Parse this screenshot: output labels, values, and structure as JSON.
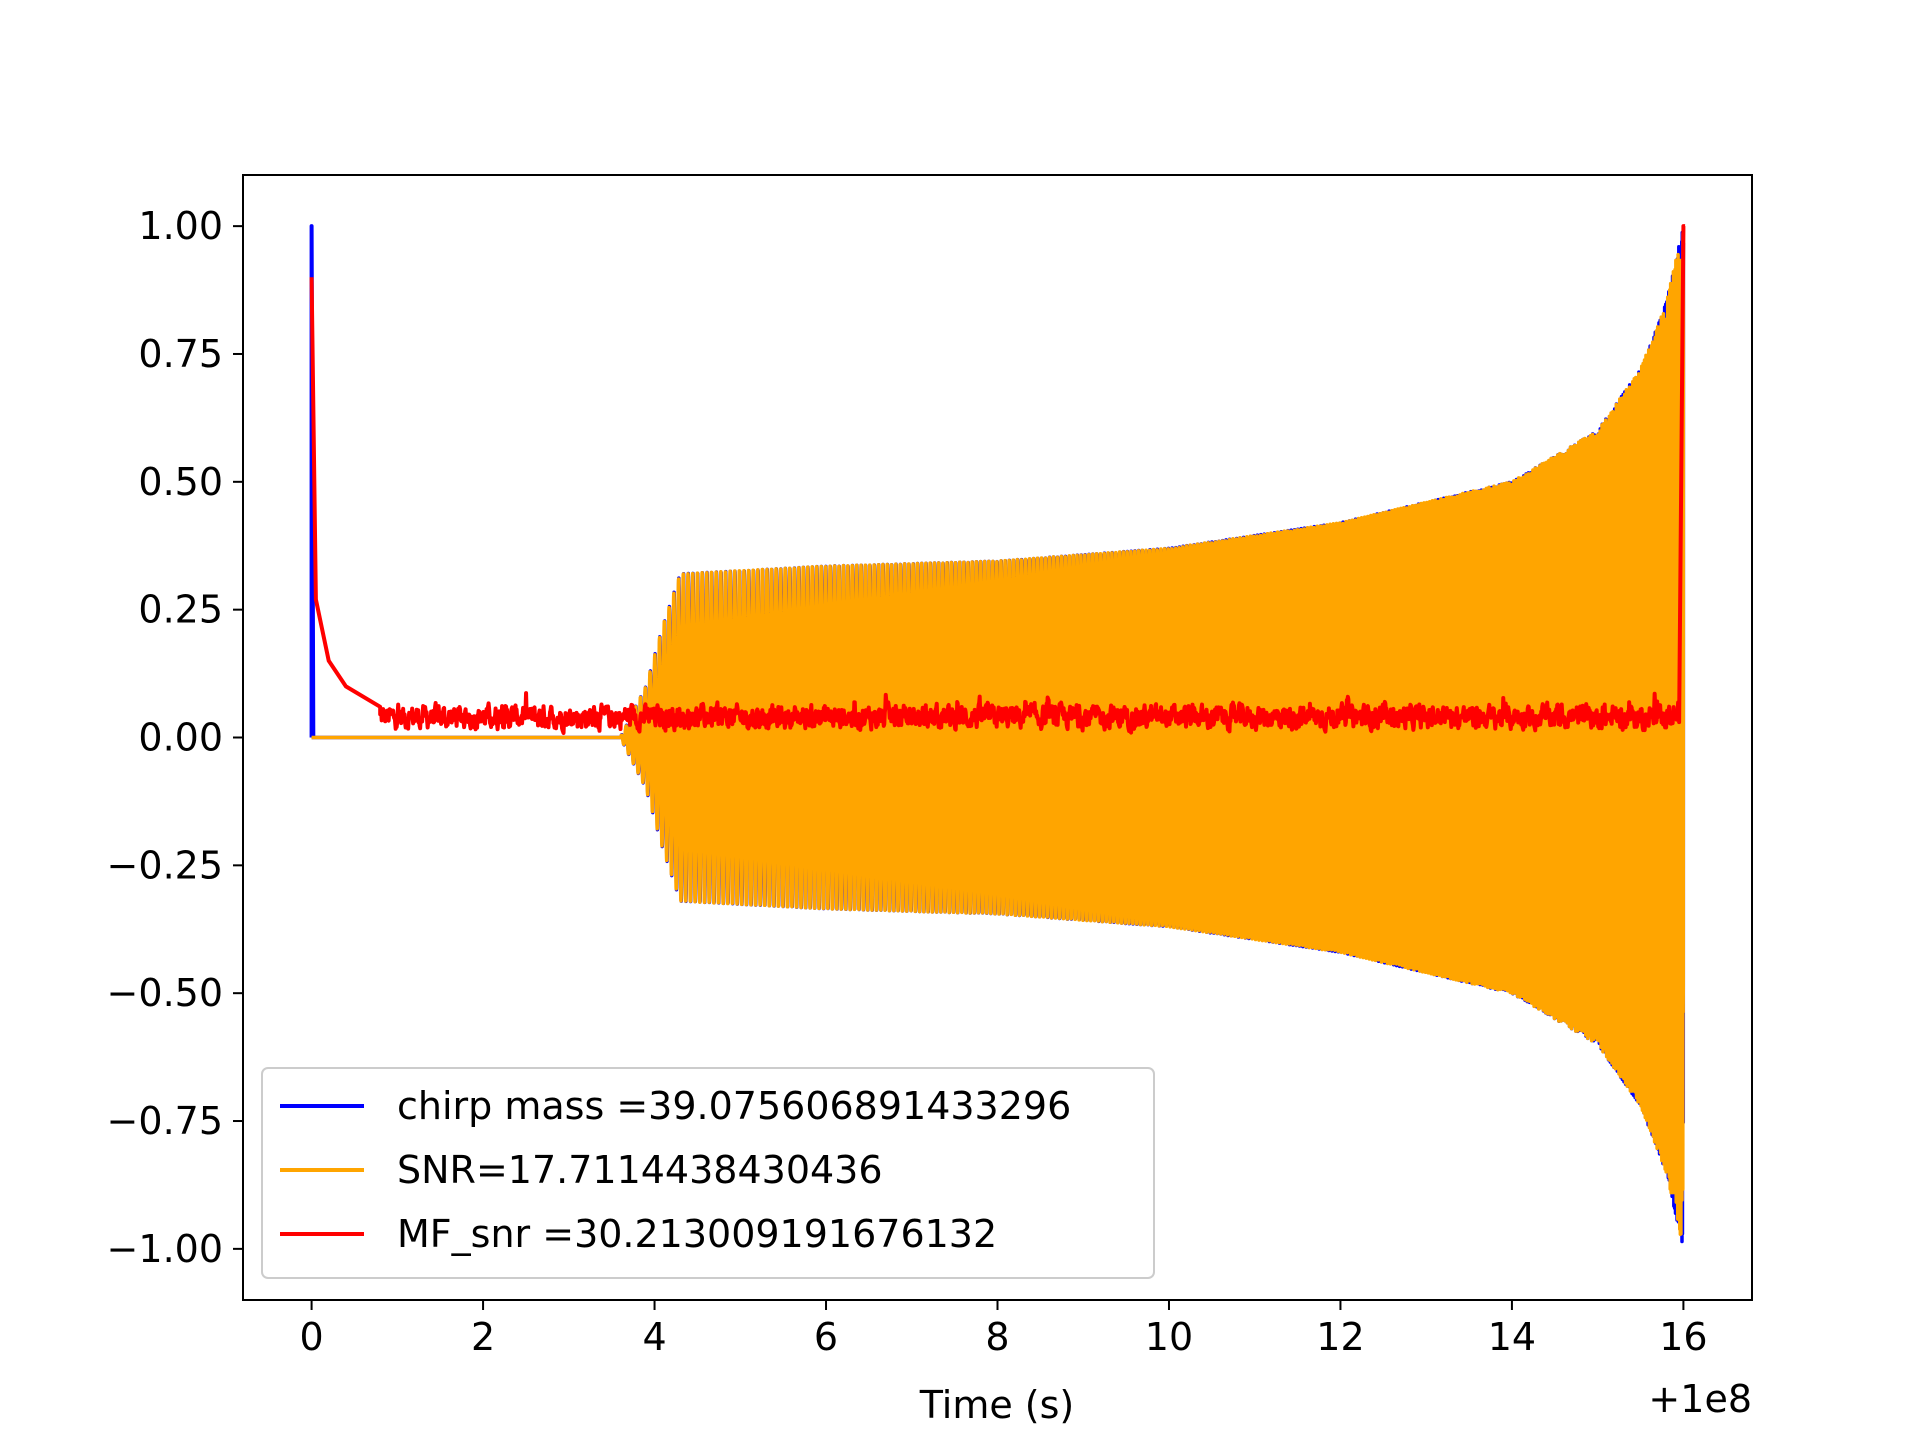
{
  "chart_data": {
    "type": "line",
    "title": "",
    "xlabel": "Time (s)",
    "ylabel": "",
    "x_offset_label": "+1e8",
    "xlim": [
      -0.8,
      16.8
    ],
    "ylim": [
      -1.1,
      1.1
    ],
    "x_ticks": [
      0,
      2,
      4,
      6,
      8,
      10,
      12,
      14,
      16
    ],
    "x_tick_labels": [
      "0",
      "2",
      "4",
      "6",
      "8",
      "10",
      "12",
      "14",
      "16"
    ],
    "y_ticks": [
      1.0,
      0.75,
      0.5,
      0.25,
      0.0,
      -0.25,
      -0.5,
      -0.75,
      -1.0
    ],
    "y_tick_labels": [
      "1.00",
      "0.75",
      "0.50",
      "0.25",
      "0.00",
      "−0.25",
      "−0.50",
      "−0.75",
      "−1.00"
    ],
    "grid": false,
    "legend_position": "lower-left",
    "series": [
      {
        "name": "chirp mass =39.075606891433296",
        "color": "#0000ff",
        "kind": "chirp",
        "start_x": 3.6,
        "end_x": 16.0,
        "envelope": [
          [
            0.0,
            1.0
          ],
          [
            3.6,
            0.0
          ],
          [
            3.9,
            0.1
          ],
          [
            4.1,
            0.22
          ],
          [
            4.3,
            0.32
          ],
          [
            6.0,
            0.335
          ],
          [
            8.0,
            0.345
          ],
          [
            10.0,
            0.37
          ],
          [
            12.0,
            0.42
          ],
          [
            14.0,
            0.5
          ],
          [
            15.0,
            0.6
          ],
          [
            15.5,
            0.72
          ],
          [
            15.8,
            0.85
          ],
          [
            16.0,
            1.0
          ]
        ],
        "spike": [
          [
            0.0,
            0.0
          ],
          [
            0.0,
            1.0
          ],
          [
            0.02,
            0.0
          ]
        ]
      },
      {
        "name": "SNR=17.7114438430436",
        "color": "#ffa500",
        "kind": "chirp",
        "start_x": 3.6,
        "end_x": 16.0,
        "envelope": [
          [
            0.0,
            0.0
          ],
          [
            3.6,
            0.0
          ],
          [
            3.9,
            0.1
          ],
          [
            4.1,
            0.22
          ],
          [
            4.3,
            0.32
          ],
          [
            6.0,
            0.335
          ],
          [
            8.0,
            0.345
          ],
          [
            10.0,
            0.37
          ],
          [
            12.0,
            0.42
          ],
          [
            14.0,
            0.5
          ],
          [
            15.0,
            0.6
          ],
          [
            15.5,
            0.72
          ],
          [
            15.8,
            0.85
          ],
          [
            16.0,
            1.0
          ]
        ]
      },
      {
        "name": "MF_snr =30.213009191676132",
        "color": "#ff0000",
        "kind": "noise",
        "mean": 0.04,
        "spike_start": [
          [
            0.0,
            0.9
          ],
          [
            0.05,
            0.27
          ],
          [
            0.2,
            0.15
          ],
          [
            0.4,
            0.1
          ],
          [
            0.8,
            0.06
          ]
        ],
        "spike_end": [
          [
            15.95,
            0.03
          ],
          [
            16.0,
            1.0
          ],
          [
            16.02,
            1.0
          ]
        ]
      }
    ]
  }
}
